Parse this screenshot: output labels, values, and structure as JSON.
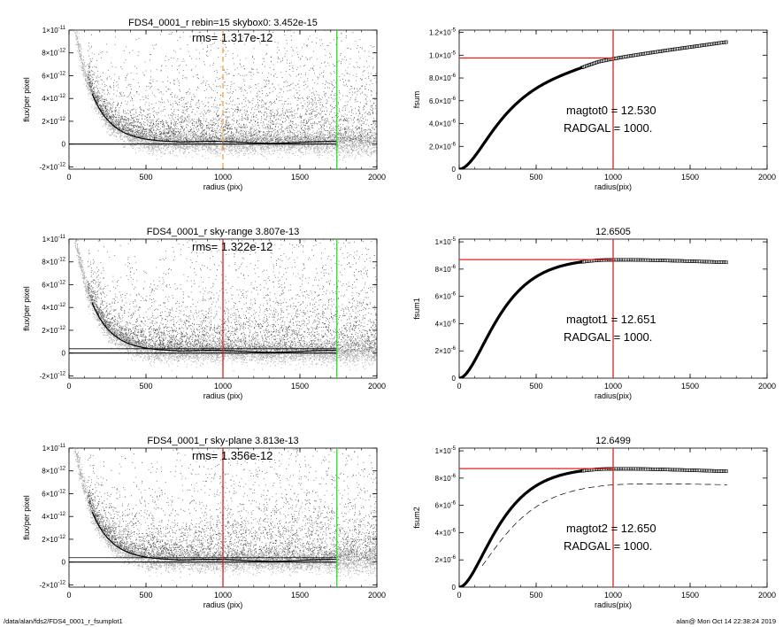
{
  "footer": {
    "left": "/data/alan/fds2/FDS4_0001_r_fsumplot1",
    "right": "alan@  Mon Oct 14 22:38:24 2019"
  },
  "colors": {
    "red": "#e0201b",
    "green": "#22dd22",
    "orange": "#f5a040",
    "scatter_dark": "#444444",
    "scatter_light": "#aaaaaa"
  },
  "chart_data": [
    {
      "type": "scatter",
      "title": "FDS4_0001_r rebin=15    skybox0:  3.452e-15",
      "annotation": "rms= 1.317e-12",
      "xlabel": "radius (pix)",
      "ylabel": "flux/per pixel",
      "xlim": [
        0,
        2000
      ],
      "ylim": [
        -2.2e-12,
        1e-11
      ],
      "xticks": [
        {
          "v": 0,
          "label": "0"
        },
        {
          "v": 500,
          "label": "500"
        },
        {
          "v": 1000,
          "label": "1000"
        },
        {
          "v": 1500,
          "label": "1500"
        },
        {
          "v": 2000,
          "label": "2000"
        }
      ],
      "yticks": [
        {
          "v": 1e-11,
          "m": "1×10",
          "e": "-11"
        },
        {
          "v": 8e-12,
          "m": "8×10",
          "e": "-12"
        },
        {
          "v": 6e-12,
          "m": "6×10",
          "e": "-12"
        },
        {
          "v": 4e-12,
          "m": "4×10",
          "e": "-12"
        },
        {
          "v": 2e-12,
          "m": "2×10",
          "e": "-12"
        },
        {
          "v": 0,
          "m": "0",
          "e": ""
        },
        {
          "v": -2e-12,
          "m": "-2×10",
          "e": "-12"
        }
      ],
      "profile_amplitude": 1.35e-11,
      "profile_scale": 130,
      "sky_levels": [
        0
      ],
      "vlines": [
        {
          "x": 1000,
          "color": "orange",
          "dashed": true
        },
        {
          "x": 1740,
          "color": "green"
        }
      ]
    },
    {
      "type": "scatter",
      "title": "FDS4_0001_r sky-range  3.807e-13",
      "annotation": "rms= 1.322e-12",
      "xlabel": "radius (pix)",
      "ylabel": "flux/per pixel",
      "xlim": [
        0,
        2000
      ],
      "ylim": [
        -2.2e-12,
        1e-11
      ],
      "xticks": [
        {
          "v": 0,
          "label": "0"
        },
        {
          "v": 500,
          "label": "500"
        },
        {
          "v": 1000,
          "label": "1000"
        },
        {
          "v": 1500,
          "label": "1500"
        },
        {
          "v": 2000,
          "label": "2000"
        }
      ],
      "yticks": [
        {
          "v": 1e-11,
          "m": "1×10",
          "e": "-11"
        },
        {
          "v": 8e-12,
          "m": "8×10",
          "e": "-12"
        },
        {
          "v": 6e-12,
          "m": "6×10",
          "e": "-12"
        },
        {
          "v": 4e-12,
          "m": "4×10",
          "e": "-12"
        },
        {
          "v": 2e-12,
          "m": "2×10",
          "e": "-12"
        },
        {
          "v": 0,
          "m": "0",
          "e": ""
        },
        {
          "v": -2e-12,
          "m": "-2×10",
          "e": "-12"
        }
      ],
      "profile_amplitude": 1.35e-11,
      "profile_scale": 130,
      "sky_levels": [
        0,
        3.807e-13
      ],
      "vlines": [
        {
          "x": 1000,
          "color": "red"
        },
        {
          "x": 1740,
          "color": "green"
        }
      ]
    },
    {
      "type": "scatter",
      "title": "FDS4_0001_r sky-plane  3.813e-13",
      "annotation": "rms= 1.356e-12",
      "xlabel": "radius (pix)",
      "ylabel": "flux/per pixel",
      "xlim": [
        0,
        2000
      ],
      "ylim": [
        -2.2e-12,
        1e-11
      ],
      "xticks": [
        {
          "v": 0,
          "label": "0"
        },
        {
          "v": 500,
          "label": "500"
        },
        {
          "v": 1000,
          "label": "1000"
        },
        {
          "v": 1500,
          "label": "1500"
        },
        {
          "v": 2000,
          "label": "2000"
        }
      ],
      "yticks": [
        {
          "v": 1e-11,
          "m": "1×10",
          "e": "-11"
        },
        {
          "v": 8e-12,
          "m": "8×10",
          "e": "-12"
        },
        {
          "v": 6e-12,
          "m": "6×10",
          "e": "-12"
        },
        {
          "v": 4e-12,
          "m": "4×10",
          "e": "-12"
        },
        {
          "v": 2e-12,
          "m": "2×10",
          "e": "-12"
        },
        {
          "v": 0,
          "m": "0",
          "e": ""
        },
        {
          "v": -2e-12,
          "m": "-2×10",
          "e": "-12"
        }
      ],
      "profile_amplitude": 1.35e-11,
      "profile_scale": 130,
      "sky_levels": [
        0,
        3.813e-13
      ],
      "vlines": [
        {
          "x": 1000,
          "color": "red"
        },
        {
          "x": 1740,
          "color": "green"
        }
      ]
    },
    {
      "type": "line",
      "title": "",
      "annotations": [
        "magtot0 =  12.530",
        "RADGAL =   1000."
      ],
      "xlabel": "radius(pix)",
      "ylabel": "fsum",
      "xlim": [
        0,
        2000
      ],
      "ylim": [
        0,
        1.22e-05
      ],
      "xticks": [
        {
          "v": 0,
          "label": "0"
        },
        {
          "v": 500,
          "label": "500"
        },
        {
          "v": 1000,
          "label": "1000"
        },
        {
          "v": 1500,
          "label": "1500"
        },
        {
          "v": 2000,
          "label": "2000"
        }
      ],
      "yticks": [
        {
          "v": 1.2e-05,
          "m": "1.2×10",
          "e": "-5"
        },
        {
          "v": 1e-05,
          "m": "1.0×10",
          "e": "-5"
        },
        {
          "v": 8e-06,
          "m": "8.0×10",
          "e": "-6"
        },
        {
          "v": 6e-06,
          "m": "6.0×10",
          "e": "-6"
        },
        {
          "v": 4e-06,
          "m": "4.0×10",
          "e": "-6"
        },
        {
          "v": 2e-06,
          "m": "2.0×10",
          "e": "-6"
        },
        {
          "v": 0,
          "m": "0",
          "e": ""
        }
      ],
      "growth": {
        "asymptote": 8.5e-06,
        "scale": 160,
        "slope": 1.85e-09,
        "rmax": 1740
      },
      "hline": 9.75e-06,
      "vline": 1000
    },
    {
      "type": "line",
      "title": "12.6505",
      "annotations": [
        "magtot1 =  12.651",
        "RADGAL =   1000."
      ],
      "xlabel": "radius(pix)",
      "ylabel": "fsum1",
      "xlim": [
        0,
        2000
      ],
      "ylim": [
        0,
        1.02e-05
      ],
      "xticks": [
        {
          "v": 0,
          "label": "0"
        },
        {
          "v": 500,
          "label": "500"
        },
        {
          "v": 1000,
          "label": "1000"
        },
        {
          "v": 1500,
          "label": "1500"
        },
        {
          "v": 2000,
          "label": "2000"
        }
      ],
      "yticks": [
        {
          "v": 1e-05,
          "m": "1×10",
          "e": "-5"
        },
        {
          "v": 8e-06,
          "m": "8×10",
          "e": "-6"
        },
        {
          "v": 6e-06,
          "m": "6×10",
          "e": "-6"
        },
        {
          "v": 4e-06,
          "m": "4×10",
          "e": "-6"
        },
        {
          "v": 2e-06,
          "m": "2×10",
          "e": "-6"
        },
        {
          "v": 0,
          "m": "0",
          "e": ""
        }
      ],
      "growth": {
        "asymptote": 8.8e-06,
        "scale": 150,
        "peak": 900,
        "decline": 3.6e-10,
        "rmax": 1740
      },
      "hline": 8.7e-06,
      "vline": 1000
    },
    {
      "type": "line",
      "title": "12.6499",
      "annotations": [
        "magtot2 =  12.650",
        "RADGAL =   1000."
      ],
      "xlabel": "radius(pix)",
      "ylabel": "fsum2",
      "xlim": [
        0,
        2000
      ],
      "ylim": [
        0,
        1.02e-05
      ],
      "xticks": [
        {
          "v": 0,
          "label": "0"
        },
        {
          "v": 500,
          "label": "500"
        },
        {
          "v": 1000,
          "label": "1000"
        },
        {
          "v": 1500,
          "label": "1500"
        },
        {
          "v": 2000,
          "label": "2000"
        }
      ],
      "yticks": [
        {
          "v": 1e-05,
          "m": "1×10",
          "e": "-5"
        },
        {
          "v": 8e-06,
          "m": "8×10",
          "e": "-6"
        },
        {
          "v": 6e-06,
          "m": "6×10",
          "e": "-6"
        },
        {
          "v": 4e-06,
          "m": "4×10",
          "e": "-6"
        },
        {
          "v": 2e-06,
          "m": "2×10",
          "e": "-6"
        },
        {
          "v": 0,
          "m": "0",
          "e": ""
        }
      ],
      "growth": {
        "asymptote": 8.8e-06,
        "scale": 150,
        "peak": 900,
        "decline": 3.6e-10,
        "rmax": 1740
      },
      "dashed_growth": {
        "asymptote": 7.7e-06,
        "scale": 180,
        "peak": 1000,
        "decline": 2.5e-10,
        "rmax": 1740
      },
      "hline": 8.7e-06,
      "vline": 1000
    }
  ]
}
